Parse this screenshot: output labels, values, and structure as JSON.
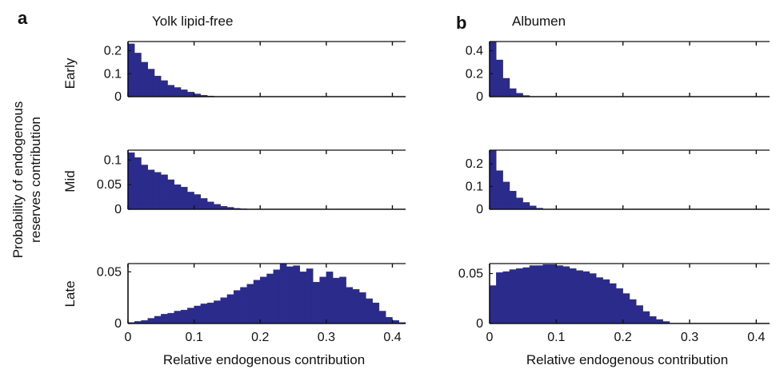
{
  "panel_letters": [
    "a",
    "b"
  ],
  "column_titles": [
    "Yolk lipid-free",
    "Albumen"
  ],
  "row_labels": [
    "Early",
    "Mid",
    "Late"
  ],
  "ylabel": [
    "Probability of endogenous",
    "reserves contribution"
  ],
  "xlabel": "Relative endogenous contribution",
  "x_ticks": [
    "0",
    "0.1",
    "0.2",
    "0.3",
    "0.4"
  ],
  "colors": {
    "bar": "#2b2b8c",
    "axis": "#111111"
  },
  "chart_data": [
    {
      "type": "bar",
      "column": "Yolk lipid-free",
      "row": "Early",
      "x": [
        0.0,
        0.01,
        0.02,
        0.03,
        0.04,
        0.05,
        0.06,
        0.07,
        0.08,
        0.09,
        0.1,
        0.11,
        0.12
      ],
      "values": [
        0.23,
        0.19,
        0.15,
        0.12,
        0.09,
        0.07,
        0.05,
        0.04,
        0.03,
        0.02,
        0.012,
        0.006,
        0.003
      ],
      "xlim": [
        0,
        0.42
      ],
      "ylim": [
        0,
        0.24
      ],
      "y_ticks": [
        "0",
        "0.1",
        "0.2"
      ],
      "y_tick_values": [
        0,
        0.1,
        0.2
      ]
    },
    {
      "type": "bar",
      "column": "Yolk lipid-free",
      "row": "Mid",
      "x": [
        0.0,
        0.01,
        0.02,
        0.03,
        0.04,
        0.05,
        0.06,
        0.07,
        0.08,
        0.09,
        0.1,
        0.11,
        0.12,
        0.13,
        0.14,
        0.15,
        0.16,
        0.17
      ],
      "values": [
        0.115,
        0.105,
        0.09,
        0.08,
        0.075,
        0.07,
        0.06,
        0.05,
        0.045,
        0.035,
        0.03,
        0.022,
        0.015,
        0.01,
        0.006,
        0.004,
        0.002,
        0.001
      ],
      "xlim": [
        0,
        0.42
      ],
      "ylim": [
        0,
        0.12
      ],
      "y_ticks": [
        "0",
        "0.05",
        "0.1"
      ],
      "y_tick_values": [
        0,
        0.05,
        0.1
      ]
    },
    {
      "type": "bar",
      "column": "Yolk lipid-free",
      "row": "Late",
      "x": [
        0.0,
        0.01,
        0.02,
        0.03,
        0.04,
        0.05,
        0.06,
        0.07,
        0.08,
        0.09,
        0.1,
        0.11,
        0.12,
        0.13,
        0.14,
        0.15,
        0.16,
        0.17,
        0.18,
        0.19,
        0.2,
        0.21,
        0.22,
        0.23,
        0.24,
        0.25,
        0.26,
        0.27,
        0.28,
        0.29,
        0.3,
        0.31,
        0.32,
        0.33,
        0.34,
        0.35,
        0.36,
        0.37,
        0.38,
        0.39,
        0.4,
        0.41
      ],
      "values": [
        0.001,
        0.002,
        0.003,
        0.005,
        0.007,
        0.009,
        0.01,
        0.012,
        0.013,
        0.015,
        0.017,
        0.019,
        0.02,
        0.022,
        0.025,
        0.028,
        0.032,
        0.035,
        0.038,
        0.042,
        0.045,
        0.048,
        0.052,
        0.058,
        0.055,
        0.056,
        0.05,
        0.053,
        0.04,
        0.045,
        0.05,
        0.044,
        0.045,
        0.035,
        0.033,
        0.03,
        0.024,
        0.02,
        0.012,
        0.006,
        0.003,
        0.001
      ],
      "xlim": [
        0,
        0.42
      ],
      "ylim": [
        0,
        0.058
      ],
      "y_ticks": [
        "0",
        "0.05"
      ],
      "y_tick_values": [
        0,
        0.05
      ]
    },
    {
      "type": "bar",
      "column": "Albumen",
      "row": "Early",
      "x": [
        0.0,
        0.01,
        0.02,
        0.03,
        0.04,
        0.05
      ],
      "values": [
        0.48,
        0.32,
        0.16,
        0.07,
        0.03,
        0.01
      ],
      "xlim": [
        0,
        0.42
      ],
      "ylim": [
        0,
        0.48
      ],
      "y_ticks": [
        "0",
        "0.2",
        "0.4"
      ],
      "y_tick_values": [
        0,
        0.2,
        0.4
      ]
    },
    {
      "type": "bar",
      "column": "Albumen",
      "row": "Mid",
      "x": [
        0.0,
        0.01,
        0.02,
        0.03,
        0.04,
        0.05,
        0.06,
        0.07
      ],
      "values": [
        0.26,
        0.17,
        0.12,
        0.08,
        0.05,
        0.03,
        0.015,
        0.005
      ],
      "xlim": [
        0,
        0.42
      ],
      "ylim": [
        0,
        0.26
      ],
      "y_ticks": [
        "0",
        "0.1",
        "0.2"
      ],
      "y_tick_values": [
        0,
        0.1,
        0.2
      ]
    },
    {
      "type": "bar",
      "column": "Albumen",
      "row": "Late",
      "x": [
        0.0,
        0.01,
        0.02,
        0.03,
        0.04,
        0.05,
        0.06,
        0.07,
        0.08,
        0.09,
        0.1,
        0.11,
        0.12,
        0.13,
        0.14,
        0.15,
        0.16,
        0.17,
        0.18,
        0.19,
        0.2,
        0.21,
        0.22,
        0.23,
        0.24,
        0.25,
        0.26
      ],
      "values": [
        0.038,
        0.051,
        0.052,
        0.054,
        0.055,
        0.056,
        0.058,
        0.058,
        0.059,
        0.059,
        0.058,
        0.057,
        0.055,
        0.053,
        0.052,
        0.05,
        0.046,
        0.044,
        0.04,
        0.035,
        0.03,
        0.024,
        0.018,
        0.012,
        0.007,
        0.004,
        0.002
      ],
      "xlim": [
        0,
        0.42
      ],
      "ylim": [
        0,
        0.06
      ],
      "y_ticks": [
        "0",
        "0.05"
      ],
      "y_tick_values": [
        0,
        0.05
      ]
    }
  ]
}
